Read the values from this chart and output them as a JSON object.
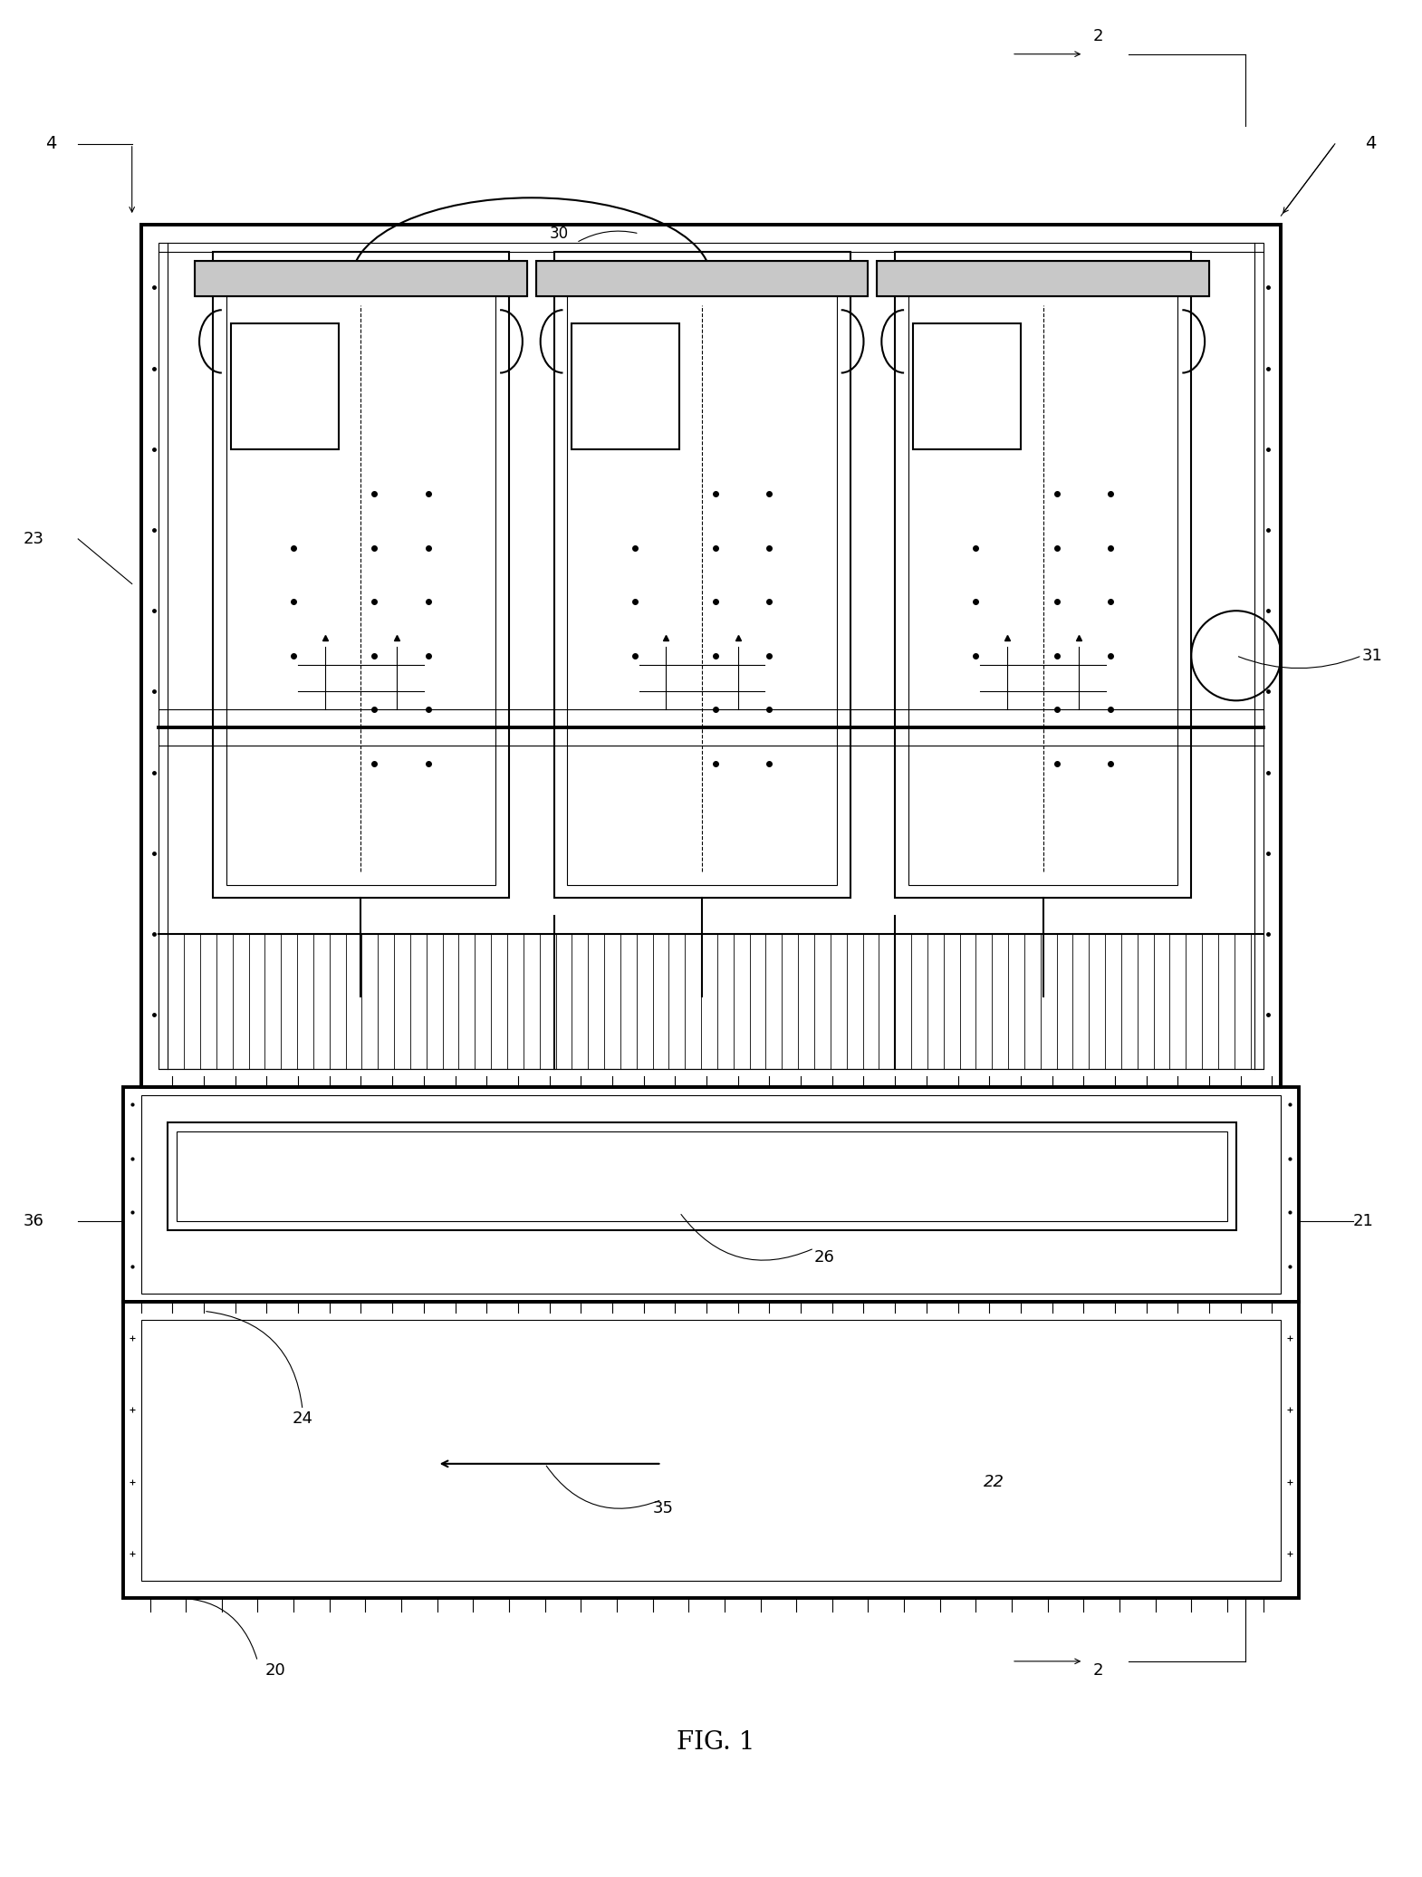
{
  "bg_color": "#ffffff",
  "line_color": "#000000",
  "fig_width": 15.7,
  "fig_height": 20.72,
  "title": "FIG. 1",
  "label_2_top": "2",
  "label_4_left": "4",
  "label_4_right": "4",
  "label_20": "20",
  "label_21": "21",
  "label_22": "22",
  "label_23": "23",
  "label_24": "24",
  "label_26": "26",
  "label_30": "30",
  "label_31": "31",
  "label_35": "35",
  "label_36": "36",
  "label_2_bot": "2"
}
